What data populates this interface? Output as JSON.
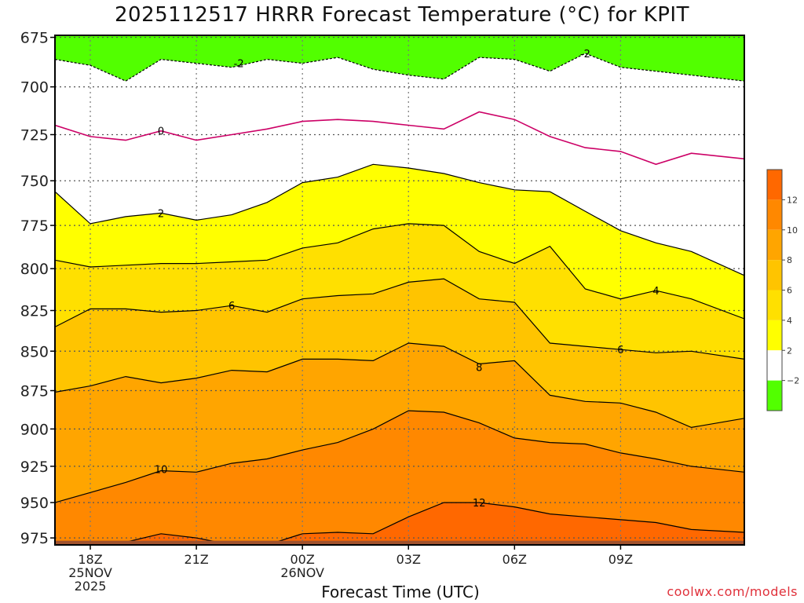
{
  "title": "2025112517 HRRR Forecast Temperature (°C) for KPIT",
  "credit": "coolwx.com/models",
  "colors": {
    "below_minus2": "#52ff00",
    "minus2_to_2": "#ffffff",
    "c2_4": "#ffff00",
    "c4_6": "#ffe000",
    "c6_8": "#ffc400",
    "c8_10": "#ffa500",
    "c10_12": "#ff8800",
    "c12_14": "#ff6800",
    "ground": "#a0522d",
    "zero_line": "#cc0066"
  },
  "chart_data": {
    "type": "contour",
    "title": "2025112517 HRRR Forecast Temperature (°C) for KPIT",
    "xlabel": "Forecast Time (UTC)",
    "ylabel": "",
    "y_scale": "log-pressure (hPa), inverted",
    "ylim": [
      980,
      674
    ],
    "xlim_hours": [
      17,
      36.5
    ],
    "grid": true,
    "x_ticks": [
      {
        "hour": 18,
        "lines": [
          "18Z",
          "25NOV",
          "2025"
        ]
      },
      {
        "hour": 21,
        "lines": [
          "21Z"
        ]
      },
      {
        "hour": 24,
        "lines": [
          "00Z",
          "26NOV"
        ]
      },
      {
        "hour": 27,
        "lines": [
          "03Z"
        ]
      },
      {
        "hour": 30,
        "lines": [
          "06Z"
        ]
      },
      {
        "hour": 33,
        "lines": [
          "09Z"
        ]
      }
    ],
    "y_ticks": [
      675,
      700,
      725,
      750,
      775,
      800,
      825,
      850,
      875,
      900,
      925,
      950,
      975
    ],
    "hours": [
      17,
      18,
      19,
      20,
      21,
      22,
      23,
      24,
      25,
      26,
      27,
      28,
      29,
      30,
      31,
      32,
      33,
      34,
      35,
      36.5
    ],
    "surface_pressure_hpa": 977,
    "contours": [
      {
        "level": -2,
        "dashed": true,
        "label": "-2",
        "pressures": [
          686,
          689,
          697,
          686,
          688,
          690,
          686,
          688,
          685,
          691,
          694,
          696,
          685,
          686,
          692,
          683,
          690,
          692,
          694,
          697
        ]
      },
      {
        "level": 0,
        "dashed": false,
        "label": "0",
        "pressures": [
          720,
          726,
          728,
          723,
          728,
          725,
          722,
          718,
          717,
          718,
          720,
          722,
          713,
          717,
          726,
          732,
          734,
          741,
          735,
          738
        ]
      },
      {
        "level": 2,
        "dashed": false,
        "label": "2",
        "pressures": [
          756,
          774,
          770,
          768,
          772,
          769,
          762,
          751,
          748,
          741,
          743,
          746,
          751,
          755,
          756,
          767,
          778,
          785,
          790,
          804
        ]
      },
      {
        "level": 4,
        "dashed": false,
        "label": "4",
        "pressures": [
          795,
          799,
          798,
          797,
          797,
          796,
          795,
          788,
          785,
          777,
          774,
          775,
          790,
          797,
          787,
          812,
          818,
          813,
          818,
          830
        ]
      },
      {
        "level": 6,
        "dashed": false,
        "label": "6",
        "pressures": [
          835,
          824,
          824,
          826,
          825,
          822,
          826,
          818,
          816,
          815,
          808,
          806,
          818,
          820,
          845,
          847,
          849,
          851,
          850,
          855
        ]
      },
      {
        "level": 8,
        "dashed": false,
        "label": "8",
        "pressures": [
          876,
          872,
          866,
          870,
          867,
          862,
          863,
          855,
          855,
          856,
          845,
          847,
          858,
          856,
          878,
          882,
          883,
          889,
          899,
          893
        ]
      },
      {
        "level": 10,
        "dashed": false,
        "label": "10",
        "pressures": [
          950,
          943,
          936,
          928,
          929,
          923,
          920,
          914,
          909,
          900,
          888,
          889,
          896,
          906,
          909,
          910,
          916,
          920,
          925,
          929
        ]
      },
      {
        "level": 12,
        "dashed": false,
        "label": "12",
        "pressures": [
          980,
          978,
          978,
          972,
          975,
          980,
          980,
          972,
          971,
          972,
          960,
          950,
          950,
          953,
          958,
          960,
          962,
          964,
          969,
          971
        ]
      }
    ],
    "contour_labels": [
      {
        "label": "-2",
        "hour": 22.2,
        "pressure": 688
      },
      {
        "label": "-2",
        "hour": 32.0,
        "pressure": 683
      },
      {
        "label": "0",
        "hour": 20.0,
        "pressure": 723
      },
      {
        "label": "2",
        "hour": 20.0,
        "pressure": 768
      },
      {
        "label": "4",
        "hour": 34.0,
        "pressure": 813
      },
      {
        "label": "6",
        "hour": 22.0,
        "pressure": 822
      },
      {
        "label": "6",
        "hour": 33.0,
        "pressure": 849
      },
      {
        "label": "8",
        "hour": 29.0,
        "pressure": 860
      },
      {
        "label": "10",
        "hour": 20.0,
        "pressure": 927
      },
      {
        "label": "12",
        "hour": 29.0,
        "pressure": 950
      }
    ],
    "colorbar": {
      "ticks": [
        "12",
        "10",
        "8",
        "6",
        "4",
        "2",
        "−2"
      ],
      "levels": [
        14,
        12,
        10,
        8,
        6,
        4,
        2,
        -2,
        -4
      ]
    }
  }
}
